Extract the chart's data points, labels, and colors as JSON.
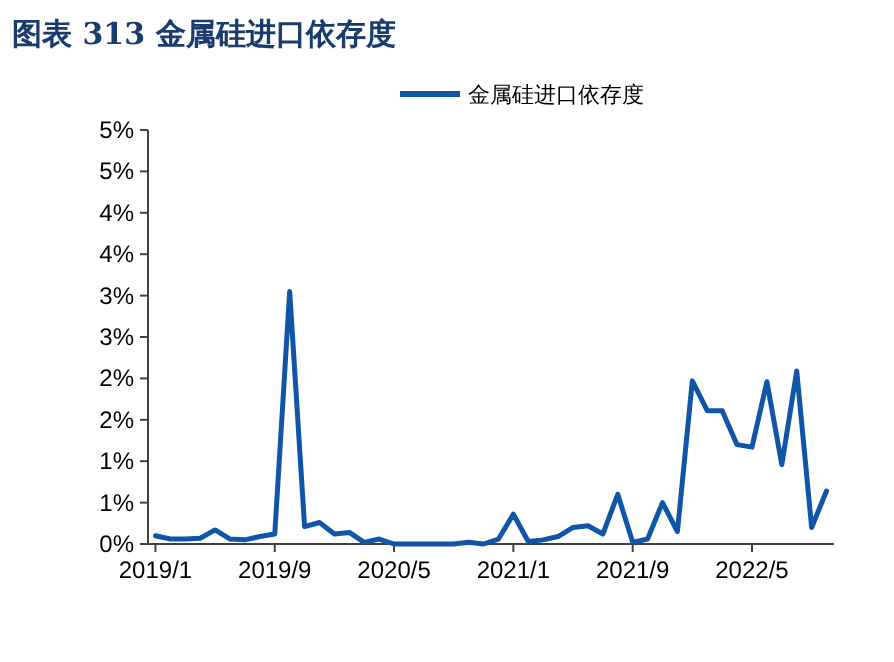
{
  "chart_data": {
    "type": "line",
    "title": "图表 313 金属硅进口依存度",
    "categories": [
      "2019/1",
      null,
      null,
      null,
      null,
      null,
      null,
      null,
      "2019/9",
      null,
      null,
      null,
      null,
      null,
      null,
      null,
      "2020/5",
      null,
      null,
      null,
      null,
      null,
      null,
      null,
      "2021/1",
      null,
      null,
      null,
      null,
      null,
      null,
      null,
      "2021/9",
      null,
      null,
      null,
      null,
      null,
      null,
      null,
      "2022/5",
      null,
      null,
      null,
      null,
      null
    ],
    "series": [
      {
        "name": "金属硅进口依存度",
        "color": "#1155a8",
        "values": [
          0.1,
          0.06,
          0.06,
          0.07,
          0.17,
          0.06,
          0.05,
          0.09,
          0.12,
          3.05,
          0.21,
          0.26,
          0.12,
          0.14,
          0.02,
          0.06,
          0,
          0,
          0,
          0,
          0,
          0.02,
          0,
          0.06,
          0.36,
          0.03,
          0.05,
          0.09,
          0.2,
          0.22,
          0.12,
          0.6,
          0.02,
          0.06,
          0.5,
          0.15,
          1.97,
          1.61,
          1.61,
          1.2,
          1.17,
          1.96,
          0.96,
          2.09,
          0.2,
          0.64
        ]
      }
    ],
    "ylim": [
      0,
      5
    ],
    "yticks": [
      {
        "value": 0,
        "label": "0%"
      },
      {
        "value": 0.5,
        "label": "1%"
      },
      {
        "value": 1,
        "label": "1%"
      },
      {
        "value": 1.5,
        "label": "2%"
      },
      {
        "value": 2,
        "label": "2%"
      },
      {
        "value": 2.5,
        "label": "3%"
      },
      {
        "value": 3,
        "label": "3%"
      },
      {
        "value": 3.5,
        "label": "4%"
      },
      {
        "value": 4,
        "label": "4%"
      },
      {
        "value": 4.5,
        "label": "5%"
      },
      {
        "value": 5,
        "label": "5%"
      }
    ],
    "legend": "top",
    "grid": false,
    "marker": "none",
    "line_style": "solid"
  }
}
